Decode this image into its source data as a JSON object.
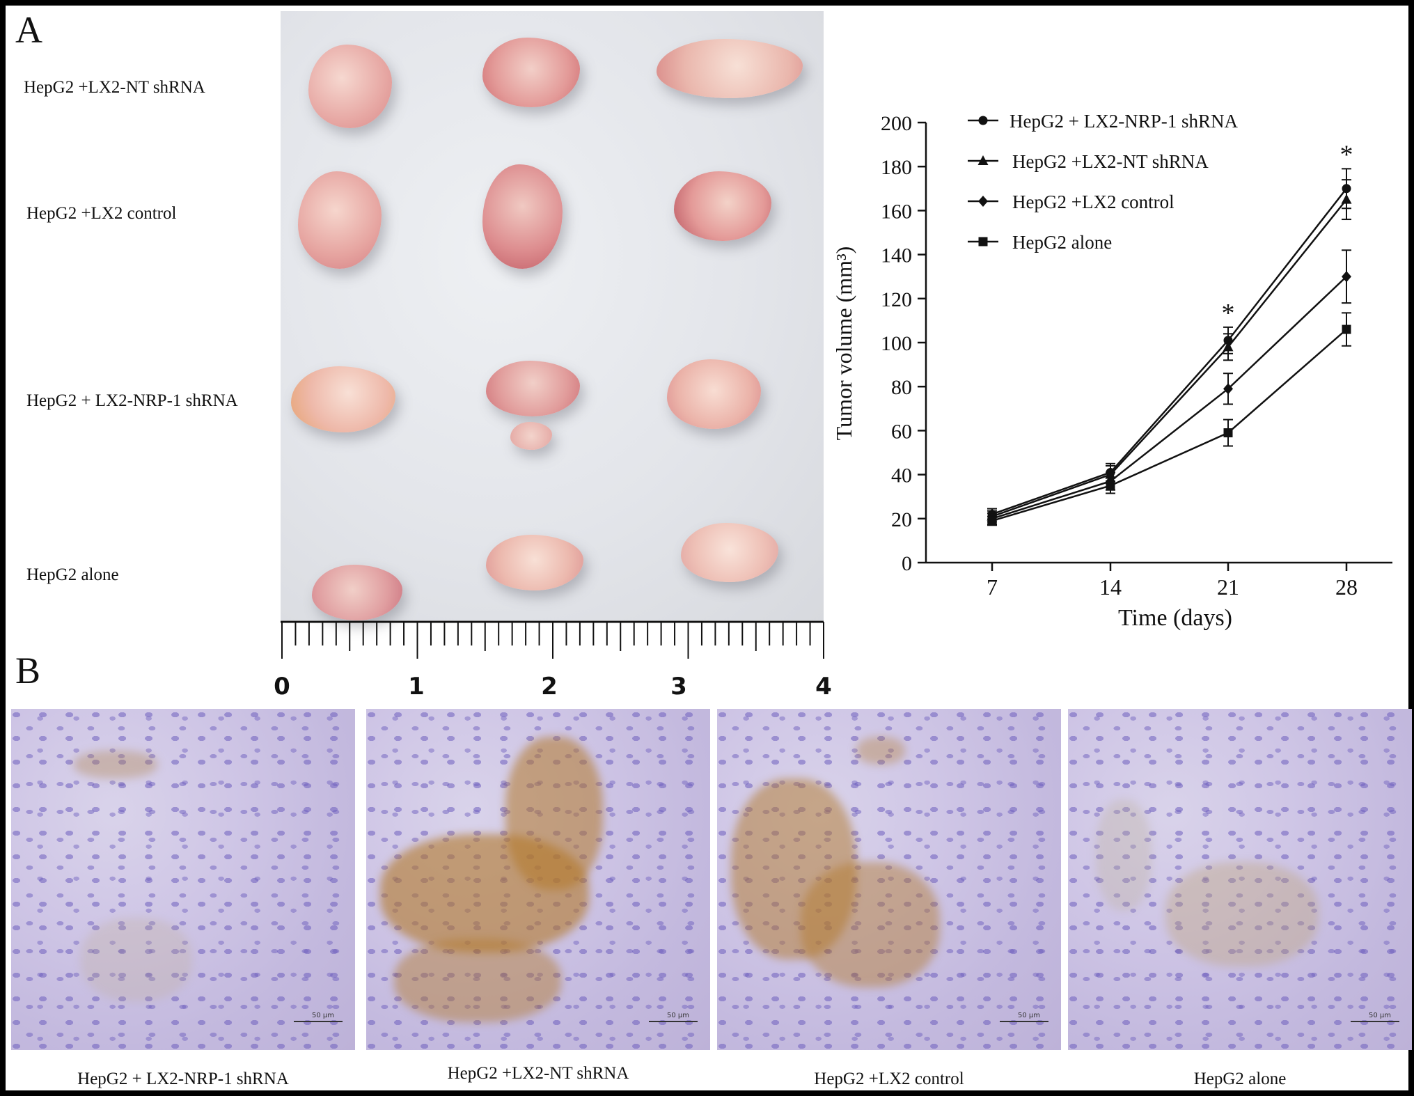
{
  "panel_a": {
    "letter": "A",
    "row_labels": [
      "HepG2 +LX2-NT shRNA",
      "HepG2 +LX2 control",
      "HepG2 + LX2-NRP-1 shRNA",
      "HepG2 alone"
    ],
    "ruler_numbers": [
      "0",
      "1",
      "2",
      "3",
      "4"
    ]
  },
  "chart_data": {
    "type": "line",
    "xlabel": "Time  (days)",
    "ylabel": "Tumor volume  (mm³)",
    "x": [
      7,
      14,
      21,
      28
    ],
    "xticks": [
      "7",
      "14",
      "21",
      "28"
    ],
    "ylim": [
      0,
      200
    ],
    "yticks": [
      "0",
      "20",
      "40",
      "60",
      "80",
      "100",
      "120",
      "140",
      "160",
      "180",
      "200"
    ],
    "grid": false,
    "legend_position": "top-left",
    "series": [
      {
        "name": "HepG2 + LX2-NRP-1 shRNA",
        "marker": "circle",
        "values": [
          22,
          41,
          101,
          170
        ],
        "errors": [
          2.5,
          4,
          6,
          9
        ]
      },
      {
        "name": "HepG2 +LX2-NT shRNA",
        "marker": "triangle",
        "values": [
          21,
          40,
          98,
          165
        ],
        "errors": [
          2.5,
          4,
          6,
          9
        ]
      },
      {
        "name": "HepG2 +LX2 control",
        "marker": "diamond",
        "values": [
          20,
          37,
          79,
          130
        ],
        "errors": [
          2.5,
          4,
          7,
          12
        ]
      },
      {
        "name": "HepG2 alone",
        "marker": "square",
        "values": [
          19,
          35,
          59,
          106
        ],
        "errors": [
          2,
          3.5,
          6,
          7.5
        ]
      }
    ],
    "annotations": [
      {
        "x": 21,
        "text": "*"
      },
      {
        "x": 28,
        "text": "*"
      }
    ]
  },
  "panel_b": {
    "letter": "B",
    "scalebar": "50 μm",
    "labels": [
      "HepG2 + LX2-NRP-1 shRNA",
      "HepG2 +LX2-NT shRNA",
      "HepG2 +LX2 control",
      "HepG2 alone"
    ]
  }
}
